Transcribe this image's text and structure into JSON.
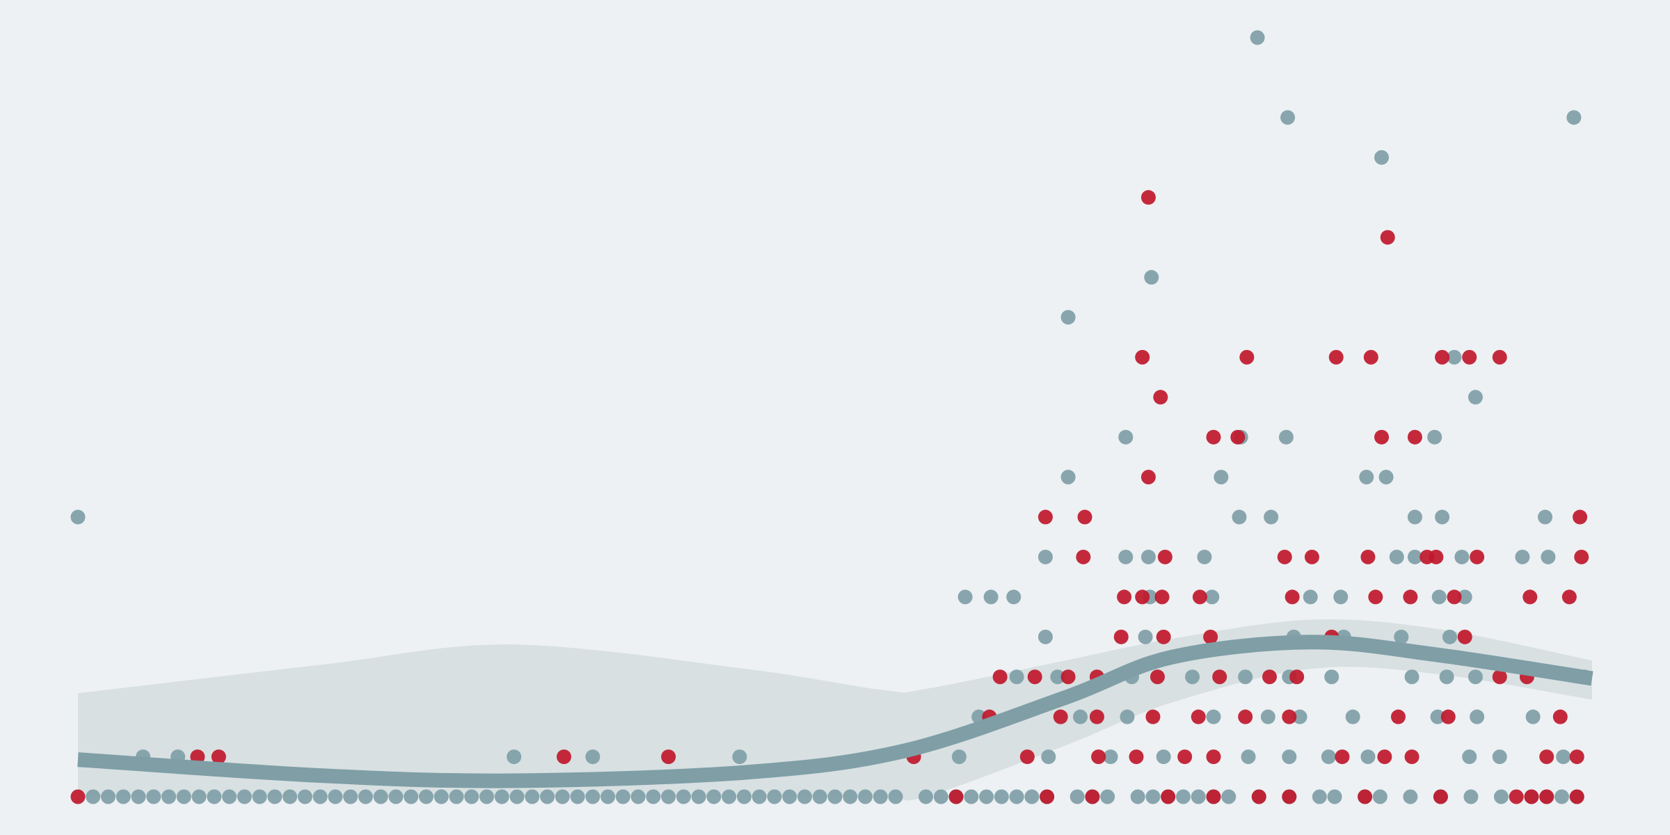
{
  "chart_data": {
    "type": "scatter",
    "xlim": [
      0,
      100
    ],
    "ylim": [
      0,
      19
    ],
    "background": "#edf1f4",
    "series": [
      {
        "color": "#7f9ea6",
        "x": [
          1,
          2,
          3,
          4,
          5,
          6,
          7,
          8,
          9,
          10,
          11,
          12,
          13,
          14,
          15,
          16,
          17,
          18,
          19,
          20,
          21,
          22,
          23,
          24,
          25,
          26,
          27,
          28,
          29,
          30,
          31,
          32,
          33,
          34,
          35,
          36,
          37,
          38,
          39,
          40,
          41,
          42,
          43,
          44,
          45,
          46,
          47,
          48,
          49,
          50,
          51,
          52,
          53,
          54,
          56,
          57,
          58,
          59,
          60,
          61,
          62,
          63,
          64,
          66,
          67,
          68,
          70,
          71,
          72,
          73,
          74,
          75,
          76,
          78,
          80,
          82,
          83,
          85,
          86,
          88,
          90,
          92,
          94,
          96,
          97,
          98,
          99,
          4.3,
          6.6,
          28.8,
          34,
          43.7,
          58.2,
          64.1,
          68.2,
          71.7,
          77.3,
          80,
          82.6,
          85.2,
          91.9,
          93.9,
          98.1,
          59.5,
          66.2,
          69.3,
          75,
          78.6,
          80.7,
          84.2,
          89.8,
          92.4,
          96.1,
          62,
          64.7,
          69.6,
          73.6,
          77.1,
          80,
          82.8,
          88.1,
          90.4,
          92.3,
          99.5,
          63.9,
          70.5,
          80.3,
          83.6,
          87.4,
          90.6,
          58.6,
          60.3,
          61.8,
          70.8,
          74.9,
          81.4,
          83.4,
          89.9,
          91.6,
          63.9,
          69.2,
          70.7,
          74.4,
          87.1,
          88.3,
          91.4,
          95.4,
          97.1,
          0,
          76.7,
          78.8,
          88.3,
          90.1,
          96.9,
          65.4,
          75.5,
          85.1,
          86.4,
          69.2,
          76.8,
          79.8,
          89.6,
          92.3,
          90.9,
          65.4,
          70.9,
          86.1,
          79.9,
          98.8,
          77.9
        ],
        "values": [
          0,
          0,
          0,
          0,
          0,
          0,
          0,
          0,
          0,
          0,
          0,
          0,
          0,
          0,
          0,
          0,
          0,
          0,
          0,
          0,
          0,
          0,
          0,
          0,
          0,
          0,
          0,
          0,
          0,
          0,
          0,
          0,
          0,
          0,
          0,
          0,
          0,
          0,
          0,
          0,
          0,
          0,
          0,
          0,
          0,
          0,
          0,
          0,
          0,
          0,
          0,
          0,
          0,
          0,
          0,
          0,
          0,
          0,
          0,
          0,
          0,
          0,
          0,
          0,
          0,
          0,
          0,
          0,
          0,
          0,
          0,
          0,
          0,
          0,
          0,
          0,
          0,
          0,
          0,
          0,
          0,
          0,
          0,
          0,
          0,
          0,
          0,
          1,
          1,
          1,
          1,
          1,
          1,
          1,
          1,
          1,
          1,
          1,
          1,
          1,
          1,
          1,
          1,
          2,
          2,
          2,
          2,
          2,
          2,
          2,
          2,
          2,
          2,
          3,
          3,
          3,
          3,
          3,
          3,
          3,
          3,
          3,
          3,
          3,
          4,
          4,
          4,
          4,
          4,
          4,
          5,
          5,
          5,
          5,
          5,
          5,
          5,
          5,
          5,
          6,
          6,
          6,
          6,
          6,
          6,
          6,
          6,
          6,
          7,
          7,
          7,
          7,
          7,
          7,
          8,
          8,
          8,
          8,
          9,
          9,
          9,
          9,
          10,
          11,
          12,
          13,
          16,
          17,
          17,
          19
        ]
      },
      {
        "color": "#c0182a",
        "x": [
          0,
          58,
          64,
          67,
          72,
          75,
          78,
          80,
          85,
          90,
          95,
          96,
          97,
          99,
          7.9,
          9.3,
          32.1,
          39,
          55.2,
          62.7,
          67.4,
          69.9,
          73.1,
          75,
          83.5,
          86.3,
          88.1,
          97,
          99,
          60.2,
          64.9,
          67.3,
          71,
          74,
          77.1,
          80,
          87.2,
          90.5,
          97.9,
          60.9,
          63.2,
          65.4,
          67.3,
          71.3,
          75.4,
          78.7,
          80.5,
          93.9,
          95.7,
          68.9,
          71.7,
          74.8,
          82.8,
          91.6,
          69.1,
          70.3,
          71.6,
          74.1,
          80.2,
          85.7,
          88,
          90.9,
          95.9,
          98.5,
          66.4,
          71.8,
          79.7,
          81.5,
          85.2,
          89.1,
          89.7,
          92.4,
          99.3,
          63.9,
          66.5,
          99.2,
          70.7,
          75,
          76.6,
          86.1,
          88.3,
          71.5,
          70.3,
          77.2,
          83.1,
          85.4,
          90.1,
          91.9,
          93.9,
          86.5,
          70.7
        ],
        "values": [
          0,
          0,
          0,
          0,
          0,
          0,
          0,
          0,
          0,
          0,
          0,
          0,
          0,
          0,
          1,
          1,
          1,
          1,
          1,
          1,
          1,
          1,
          1,
          1,
          1,
          1,
          1,
          1,
          1,
          2,
          2,
          2,
          2,
          2,
          2,
          2,
          2,
          2,
          2,
          3,
          3,
          3,
          3,
          3,
          3,
          3,
          3,
          3,
          3,
          4,
          4,
          4,
          4,
          4,
          5,
          5,
          5,
          5,
          5,
          5,
          5,
          5,
          5,
          5,
          6,
          6,
          6,
          6,
          6,
          6,
          6,
          6,
          6,
          7,
          7,
          7,
          8,
          9,
          9,
          9,
          9,
          10,
          11,
          11,
          11,
          11,
          11,
          11,
          11,
          14,
          15
        ]
      }
    ],
    "band": {
      "color": "#d8e0e2",
      "x": [
        0,
        16,
        28.6,
        44.1,
        53.2,
        56,
        65.2,
        72.2,
        81.4,
        89.8,
        100
      ],
      "upper": [
        2.59,
        3.3,
        3.81,
        3.2,
        2.67,
        2.7,
        3.41,
        3.95,
        4.43,
        4.2,
        3.41
      ],
      "lower": [
        0,
        0,
        0,
        0,
        0,
        0,
        1.28,
        2.35,
        3.2,
        3.07,
        2.43
      ]
    },
    "trend": {
      "color": "#7f9ea6",
      "x": [
        0,
        16,
        28.6,
        44.1,
        54.6,
        65.2,
        72.2,
        81.4,
        89.8,
        100
      ],
      "values": [
        0.93,
        0.53,
        0.4,
        0.61,
        1.15,
        2.48,
        3.49,
        3.87,
        3.55,
        2.96
      ]
    }
  }
}
